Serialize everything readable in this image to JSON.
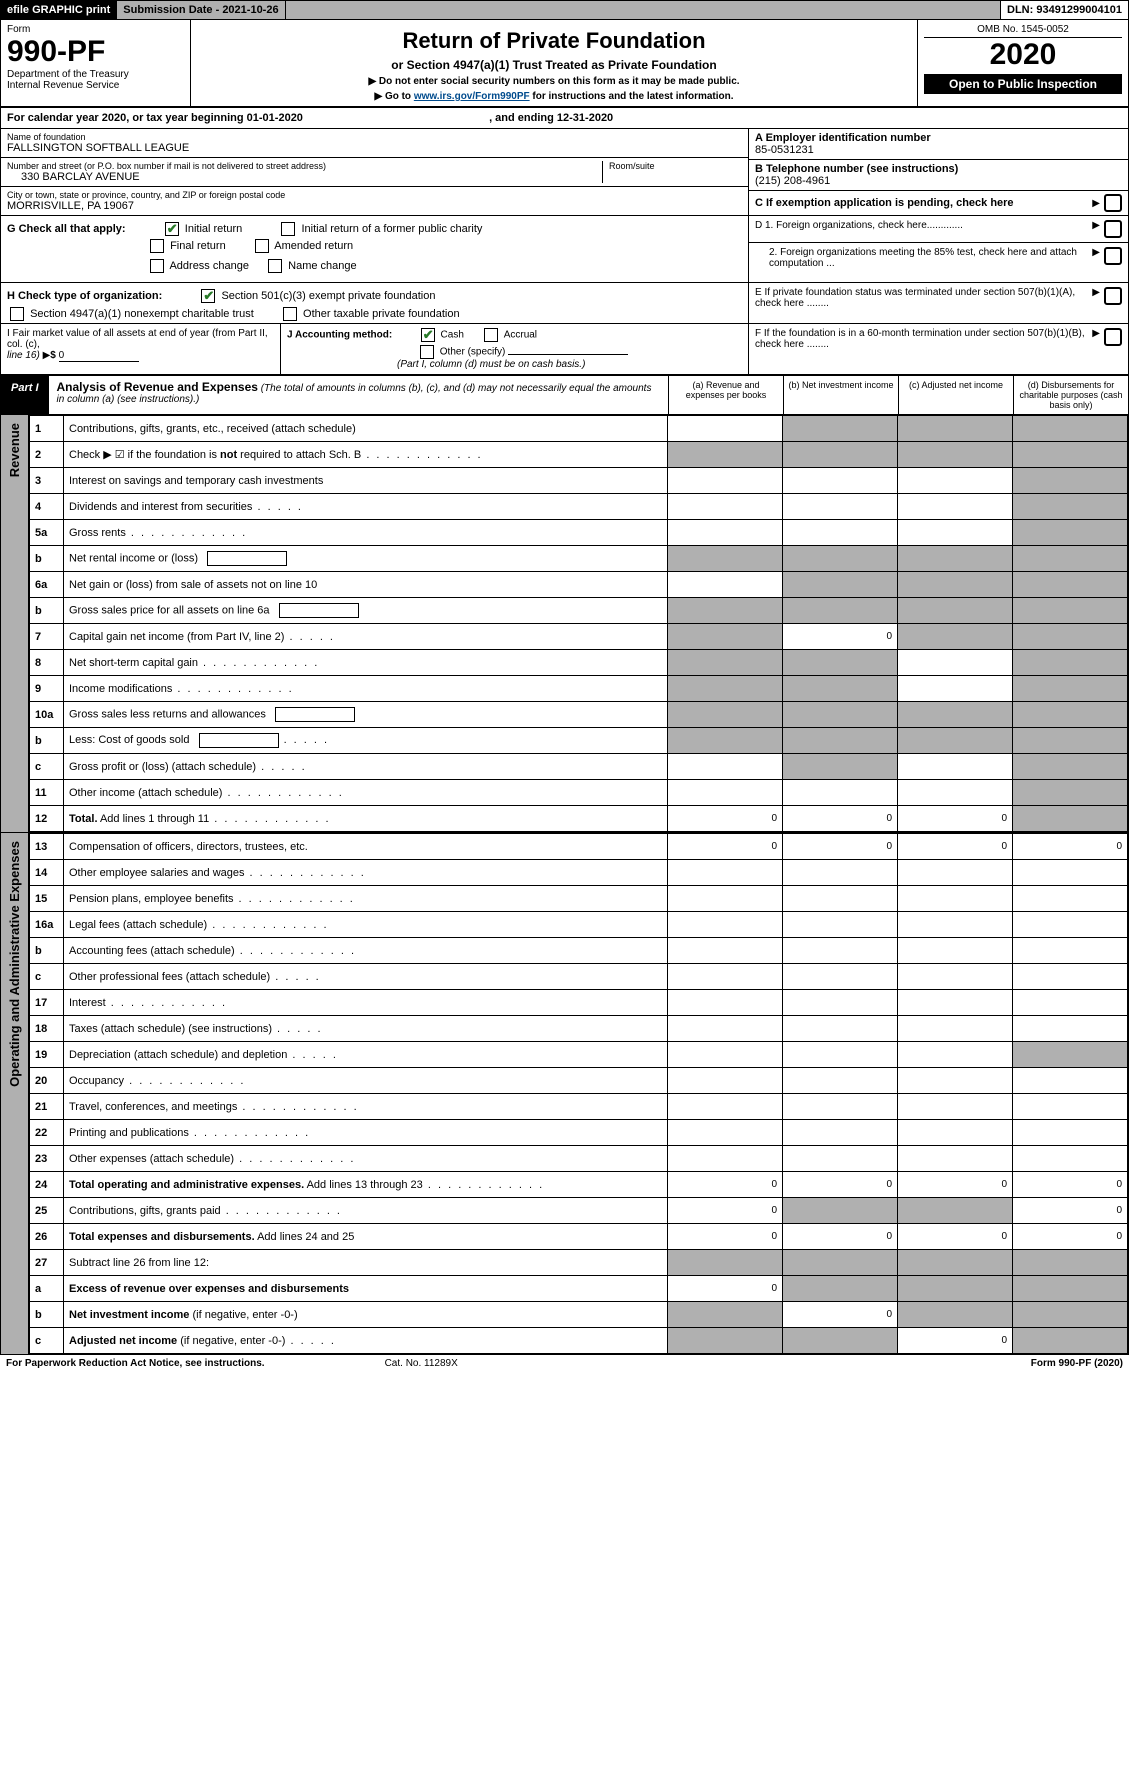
{
  "topbar": {
    "efile": "efile GRAPHIC print",
    "subdate_lbl": "Submission Date - 2021-10-26",
    "dln": "DLN: 93491299004101"
  },
  "header": {
    "form_lbl": "Form",
    "form_no": "990-PF",
    "dept1": "Department of the Treasury",
    "dept2": "Internal Revenue Service",
    "title": "Return of Private Foundation",
    "subtitle": "or Section 4947(a)(1) Trust Treated as Private Foundation",
    "inst1": "▶ Do not enter social security numbers on this form as it may be made public.",
    "inst2_pre": "▶ Go to ",
    "inst2_link": "www.irs.gov/Form990PF",
    "inst2_post": " for instructions and the latest information.",
    "omb": "OMB No. 1545-0052",
    "year": "2020",
    "openpub": "Open to Public Inspection"
  },
  "calrow": {
    "pre": "For calendar year 2020, or tax year beginning ",
    "begin": "01-01-2020",
    "mid": ", and ending ",
    "end": "12-31-2020"
  },
  "info": {
    "name_lbl": "Name of foundation",
    "name_val": "FALLSINGTON SOFTBALL LEAGUE",
    "addr_lbl": "Number and street (or P.O. box number if mail is not delivered to street address)",
    "addr_val": "330 BARCLAY AVENUE",
    "room_lbl": "Room/suite",
    "city_lbl": "City or town, state or province, country, and ZIP or foreign postal code",
    "city_val": "MORRISVILLE, PA  19067",
    "ein_lbl": "A Employer identification number",
    "ein_val": "85-0531231",
    "tel_lbl": "B Telephone number (see instructions)",
    "tel_val": "(215) 208-4961",
    "c_lbl": "C If exemption application is pending, check here",
    "d1": "D 1. Foreign organizations, check here.............",
    "d2": "2. Foreign organizations meeting the 85% test, check here and attach computation ...",
    "e": "E  If private foundation status was terminated under section 507(b)(1)(A), check here ........",
    "f": "F  If the foundation is in a 60-month termination under section 507(b)(1)(B), check here ........"
  },
  "g": {
    "label": "G Check all that apply:",
    "opts": [
      "Initial return",
      "Initial return of a former public charity",
      "Final return",
      "Amended return",
      "Address change",
      "Name change"
    ]
  },
  "h": {
    "label": "H Check type of organization:",
    "a": "Section 501(c)(3) exempt private foundation",
    "b": "Section 4947(a)(1) nonexempt charitable trust",
    "c": "Other taxable private foundation"
  },
  "i": {
    "lbl": "I Fair market value of all assets at end of year (from Part II, col. (c),",
    "line16": "line 16)",
    "val": "0"
  },
  "j": {
    "lbl": "J Accounting method:",
    "cash": "Cash",
    "accrual": "Accrual",
    "other": "Other (specify)",
    "note": "(Part I, column (d) must be on cash basis.)"
  },
  "part1": {
    "tag": "Part I",
    "title": "Analysis of Revenue and Expenses",
    "sub": "(The total of amounts in columns (b), (c), and (d) may not necessarily equal the amounts in column (a) (see instructions).)",
    "cols": [
      "(a)   Revenue and expenses per books",
      "(b)  Net investment income",
      "(c)  Adjusted net income",
      "(d)  Disbursements for charitable purposes (cash basis only)"
    ]
  },
  "rev_label": "Revenue",
  "exp_label": "Operating and Administrative Expenses",
  "rows": {
    "r1": {
      "n": "1",
      "d": "Contributions, gifts, grants, etc., received (attach schedule)",
      "g": [
        0,
        1,
        1,
        1
      ]
    },
    "r2": {
      "n": "2",
      "d": "Check ▶ ☑ if the foundation is <b>not</b> required to attach Sch. B",
      "g": [
        1,
        1,
        1,
        1
      ],
      "dots": 1
    },
    "r3": {
      "n": "3",
      "d": "Interest on savings and temporary cash investments",
      "g": [
        0,
        0,
        0,
        1
      ]
    },
    "r4": {
      "n": "4",
      "d": "Dividends and interest from securities",
      "g": [
        0,
        0,
        0,
        1
      ],
      "dots": "s"
    },
    "r5a": {
      "n": "5a",
      "d": "Gross rents",
      "g": [
        0,
        0,
        0,
        1
      ],
      "dots": 1
    },
    "r5b": {
      "n": "b",
      "d": "Net rental income or (loss)",
      "g": [
        1,
        1,
        1,
        1
      ],
      "box": 1
    },
    "r6a": {
      "n": "6a",
      "d": "Net gain or (loss) from sale of assets not on line 10",
      "g": [
        0,
        1,
        1,
        1
      ]
    },
    "r6b": {
      "n": "b",
      "d": "Gross sales price for all assets on line 6a",
      "g": [
        1,
        1,
        1,
        1
      ],
      "box": 1
    },
    "r7": {
      "n": "7",
      "d": "Capital gain net income (from Part IV, line 2)",
      "g": [
        1,
        0,
        1,
        1
      ],
      "v": {
        "1": "0"
      },
      "dots": "s"
    },
    "r8": {
      "n": "8",
      "d": "Net short-term capital gain",
      "g": [
        1,
        1,
        0,
        1
      ],
      "dots": 1
    },
    "r9": {
      "n": "9",
      "d": "Income modifications",
      "g": [
        1,
        1,
        0,
        1
      ],
      "dots": 1
    },
    "r10a": {
      "n": "10a",
      "d": "Gross sales less returns and allowances",
      "g": [
        1,
        1,
        1,
        1
      ],
      "box": 1
    },
    "r10b": {
      "n": "b",
      "d": "Less: Cost of goods sold",
      "g": [
        1,
        1,
        1,
        1
      ],
      "box": 1,
      "dots": "s"
    },
    "r10c": {
      "n": "c",
      "d": "Gross profit or (loss) (attach schedule)",
      "g": [
        0,
        1,
        0,
        1
      ],
      "dots": "s"
    },
    "r11": {
      "n": "11",
      "d": "Other income (attach schedule)",
      "g": [
        0,
        0,
        0,
        1
      ],
      "dots": 1
    },
    "r12": {
      "n": "12",
      "d": "<b>Total.</b> Add lines 1 through 11",
      "g": [
        0,
        0,
        0,
        1
      ],
      "v": {
        "0": "0",
        "1": "0",
        "2": "0"
      },
      "dots": 1
    },
    "r13": {
      "n": "13",
      "d": "Compensation of officers, directors, trustees, etc.",
      "g": [
        0,
        0,
        0,
        0
      ],
      "v": {
        "0": "0",
        "1": "0",
        "2": "0",
        "3": "0"
      }
    },
    "r14": {
      "n": "14",
      "d": "Other employee salaries and wages",
      "g": [
        0,
        0,
        0,
        0
      ],
      "dots": 1
    },
    "r15": {
      "n": "15",
      "d": "Pension plans, employee benefits",
      "g": [
        0,
        0,
        0,
        0
      ],
      "dots": 1
    },
    "r16a": {
      "n": "16a",
      "d": "Legal fees (attach schedule)",
      "g": [
        0,
        0,
        0,
        0
      ],
      "dots": 1
    },
    "r16b": {
      "n": "b",
      "d": "Accounting fees (attach schedule)",
      "g": [
        0,
        0,
        0,
        0
      ],
      "dots": 1
    },
    "r16c": {
      "n": "c",
      "d": "Other professional fees (attach schedule)",
      "g": [
        0,
        0,
        0,
        0
      ],
      "dots": "s"
    },
    "r17": {
      "n": "17",
      "d": "Interest",
      "g": [
        0,
        0,
        0,
        0
      ],
      "dots": 1
    },
    "r18": {
      "n": "18",
      "d": "Taxes (attach schedule) (see instructions)",
      "g": [
        0,
        0,
        0,
        0
      ],
      "dots": "s"
    },
    "r19": {
      "n": "19",
      "d": "Depreciation (attach schedule) and depletion",
      "g": [
        0,
        0,
        0,
        1
      ],
      "dots": "s"
    },
    "r20": {
      "n": "20",
      "d": "Occupancy",
      "g": [
        0,
        0,
        0,
        0
      ],
      "dots": 1
    },
    "r21": {
      "n": "21",
      "d": "Travel, conferences, and meetings",
      "g": [
        0,
        0,
        0,
        0
      ],
      "dots": 1
    },
    "r22": {
      "n": "22",
      "d": "Printing and publications",
      "g": [
        0,
        0,
        0,
        0
      ],
      "dots": 1
    },
    "r23": {
      "n": "23",
      "d": "Other expenses (attach schedule)",
      "g": [
        0,
        0,
        0,
        0
      ],
      "dots": 1
    },
    "r24": {
      "n": "24",
      "d": "<b>Total operating and administrative expenses.</b> Add lines 13 through 23",
      "g": [
        0,
        0,
        0,
        0
      ],
      "v": {
        "0": "0",
        "1": "0",
        "2": "0",
        "3": "0"
      },
      "dots": 1
    },
    "r25": {
      "n": "25",
      "d": "Contributions, gifts, grants paid",
      "g": [
        0,
        1,
        1,
        0
      ],
      "v": {
        "0": "0",
        "3": "0"
      },
      "dots": 1
    },
    "r26": {
      "n": "26",
      "d": "<b>Total expenses and disbursements.</b> Add lines 24 and 25",
      "g": [
        0,
        0,
        0,
        0
      ],
      "v": {
        "0": "0",
        "1": "0",
        "2": "0",
        "3": "0"
      }
    },
    "r27": {
      "n": "27",
      "d": "Subtract line 26 from line 12:",
      "g": [
        1,
        1,
        1,
        1
      ]
    },
    "r27a": {
      "n": "a",
      "d": "<b>Excess of revenue over expenses and disbursements</b>",
      "g": [
        0,
        1,
        1,
        1
      ],
      "v": {
        "0": "0"
      }
    },
    "r27b": {
      "n": "b",
      "d": "<b>Net investment income</b> (if negative, enter -0-)",
      "g": [
        1,
        0,
        1,
        1
      ],
      "v": {
        "1": "0"
      }
    },
    "r27c": {
      "n": "c",
      "d": "<b>Adjusted net income</b> (if negative, enter -0-)",
      "g": [
        1,
        1,
        0,
        1
      ],
      "v": {
        "2": "0"
      },
      "dots": "s"
    }
  },
  "footer": {
    "l": "For Paperwork Reduction Act Notice, see instructions.",
    "m": "Cat. No. 11289X",
    "r": "Form 990-PF (2020)"
  },
  "row_order_rev": [
    "r1",
    "r2",
    "r3",
    "r4",
    "r5a",
    "r5b",
    "r6a",
    "r6b",
    "r7",
    "r8",
    "r9",
    "r10a",
    "r10b",
    "r10c",
    "r11",
    "r12"
  ],
  "row_order_exp": [
    "r13",
    "r14",
    "r15",
    "r16a",
    "r16b",
    "r16c",
    "r17",
    "r18",
    "r19",
    "r20",
    "r21",
    "r22",
    "r23",
    "r24",
    "r25",
    "r26",
    "r27",
    "r27a",
    "r27b",
    "r27c"
  ]
}
